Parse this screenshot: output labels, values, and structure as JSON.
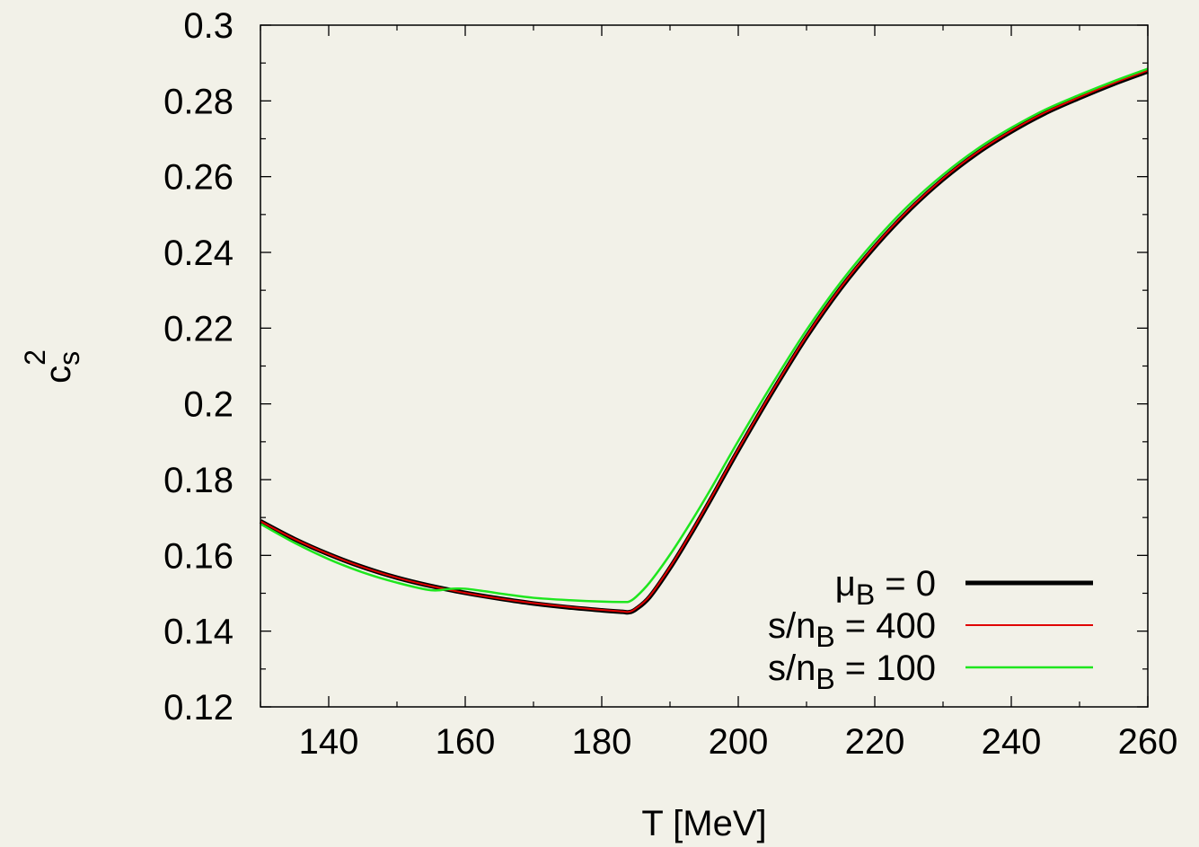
{
  "chart_data": {
    "type": "line",
    "xlabel": "T [MeV]",
    "ylabel": "c",
    "ylabel_sub": "s",
    "ylabel_sup": "2",
    "xlim": [
      130,
      260
    ],
    "ylim": [
      0.12,
      0.3
    ],
    "x_ticks": [
      "140",
      "160",
      "180",
      "200",
      "220",
      "240",
      "260"
    ],
    "y_ticks": [
      "0.12",
      "0.14",
      "0.16",
      "0.18",
      "0.2",
      "0.22",
      "0.24",
      "0.26",
      "0.28",
      "0.3"
    ],
    "grid": false,
    "legend_position": "bottom-right",
    "series": [
      {
        "name": "μB = 0",
        "legend_main": "μ",
        "legend_sub": "B",
        "legend_rest": " = 0",
        "color": "#000000",
        "x": [
          130,
          135,
          140,
          145,
          150,
          155,
          160,
          165,
          170,
          175,
          180,
          183,
          184,
          185,
          187,
          190,
          193,
          196,
          200,
          205,
          210,
          215,
          220,
          225,
          230,
          235,
          240,
          245,
          250,
          255,
          260
        ],
        "y": [
          0.169,
          0.1643,
          0.1603,
          0.1569,
          0.1541,
          0.1519,
          0.1501,
          0.1486,
          0.1473,
          0.1463,
          0.1455,
          0.1451,
          0.145,
          0.1458,
          0.149,
          0.1567,
          0.1655,
          0.1749,
          0.1878,
          0.2032,
          0.2177,
          0.2305,
          0.2415,
          0.2511,
          0.2593,
          0.2662,
          0.2719,
          0.2768,
          0.2808,
          0.2845,
          0.2878
        ]
      },
      {
        "name": "s/nB = 400",
        "legend_main": "s/n",
        "legend_sub": "B",
        "legend_rest": " = 400",
        "color": "#e00000",
        "x": [
          130,
          135,
          140,
          145,
          150,
          155,
          160,
          165,
          170,
          175,
          180,
          183,
          184,
          185,
          187,
          190,
          193,
          196,
          200,
          205,
          210,
          215,
          220,
          225,
          230,
          235,
          240,
          245,
          250,
          255,
          260
        ],
        "y": [
          0.169,
          0.1643,
          0.1603,
          0.1569,
          0.1541,
          0.1519,
          0.1501,
          0.1486,
          0.1474,
          0.1464,
          0.1456,
          0.1452,
          0.1451,
          0.146,
          0.1492,
          0.1569,
          0.1657,
          0.1751,
          0.188,
          0.2034,
          0.2179,
          0.2307,
          0.2417,
          0.2513,
          0.2595,
          0.2664,
          0.2721,
          0.277,
          0.281,
          0.2847,
          0.288
        ]
      },
      {
        "name": "s/nB = 100",
        "legend_main": "s/n",
        "legend_sub": "B",
        "legend_rest": " = 100",
        "color": "#1ee61e",
        "x": [
          130,
          135,
          140,
          145,
          150,
          155,
          158,
          160,
          163,
          166,
          170,
          175,
          180,
          183,
          184,
          185,
          187,
          190,
          193,
          196,
          200,
          205,
          210,
          215,
          220,
          225,
          230,
          235,
          240,
          245,
          250,
          255,
          260
        ],
        "y": [
          0.1683,
          0.1633,
          0.159,
          0.1555,
          0.1528,
          0.1508,
          0.1512,
          0.1512,
          0.1505,
          0.1497,
          0.1488,
          0.1482,
          0.1478,
          0.1477,
          0.1478,
          0.149,
          0.1528,
          0.1602,
          0.1686,
          0.1776,
          0.1902,
          0.2053,
          0.2195,
          0.2321,
          0.243,
          0.2525,
          0.2605,
          0.2673,
          0.2729,
          0.2777,
          0.2816,
          0.2852,
          0.2885
        ]
      }
    ]
  }
}
